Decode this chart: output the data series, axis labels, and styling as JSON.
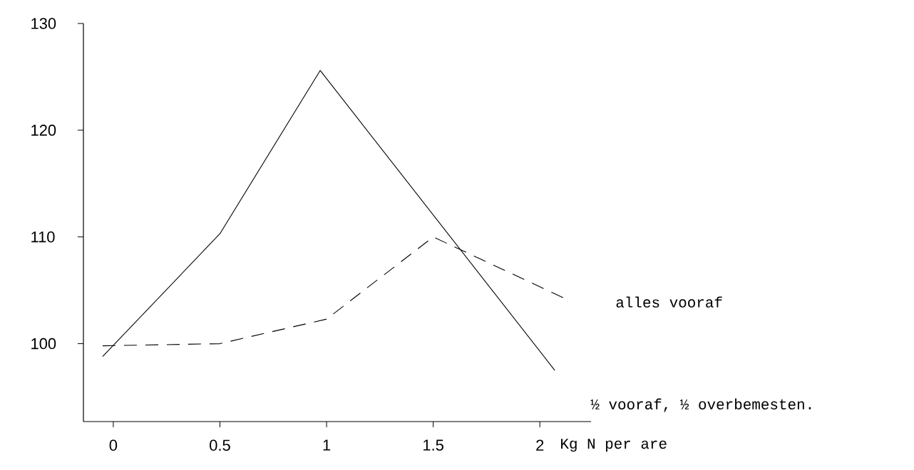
{
  "chart_data": {
    "type": "line",
    "xlabel": "Kg N per are",
    "series": [
      {
        "name": "½ vooraf, ½ overbemesten.",
        "color": "#000000",
        "line_style": "solid",
        "x": [
          -0.05,
          0.5,
          0.97,
          2.07
        ],
        "values": [
          98.8,
          110.3,
          125.6,
          97.5
        ]
      },
      {
        "name": "alles vooraf",
        "color": "#000000",
        "line_style": "dashed",
        "x": [
          -0.05,
          0.5,
          1,
          1.5,
          2.11
        ],
        "values": [
          99.8,
          100,
          102.3,
          110,
          104.3
        ]
      }
    ],
    "xlim": [
      -0.14,
      2.24
    ],
    "ylim": [
      92.7,
      130
    ],
    "xticks": [
      0,
      0.5,
      1,
      1.5,
      2
    ],
    "yticks": [
      100,
      110,
      120,
      130
    ],
    "grid": false,
    "legend": false,
    "marker": "none"
  }
}
